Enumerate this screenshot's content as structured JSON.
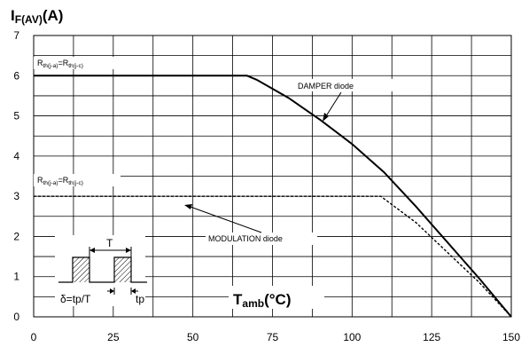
{
  "chart_data": {
    "type": "line",
    "title": "",
    "ylabel": {
      "main": "I",
      "sub": "F(AV)",
      "unit": "(A)"
    },
    "xlabel": {
      "main": "T",
      "sub": "amb",
      "unit": "(°C)"
    },
    "xlim": [
      0,
      150
    ],
    "ylim": [
      0,
      7
    ],
    "xticks": [
      0,
      25,
      50,
      75,
      100,
      125,
      150
    ],
    "yticks": [
      0,
      1,
      2,
      3,
      4,
      5,
      6,
      7
    ],
    "grid": true,
    "series": [
      {
        "name": "DAMPER diode",
        "style": "solid",
        "color": "#000000",
        "x": [
          0,
          67,
          70,
          80,
          90,
          100,
          110,
          120,
          130,
          140,
          150
        ],
        "y": [
          6,
          6,
          5.9,
          5.45,
          4.9,
          4.3,
          3.6,
          2.75,
          1.85,
          0.95,
          0
        ]
      },
      {
        "name": "MODULATION diode",
        "style": "dashed",
        "color": "#000000",
        "x": [
          0,
          109,
          120,
          130,
          140,
          150
        ],
        "y": [
          3,
          3,
          2.35,
          1.6,
          0.85,
          0
        ]
      }
    ],
    "annotations": [
      {
        "text": "R",
        "sub1": "th(j-a)",
        "mid": "=R",
        "sub2": "th(j-c)",
        "level": 6
      },
      {
        "text": "R",
        "sub1": "th(j-a)",
        "mid": "=R",
        "sub2": "th(j-c)",
        "level": 3
      }
    ],
    "inset": {
      "period_label": "T",
      "duty_label": "δ=tp/T",
      "pulse_label": "tp"
    }
  }
}
